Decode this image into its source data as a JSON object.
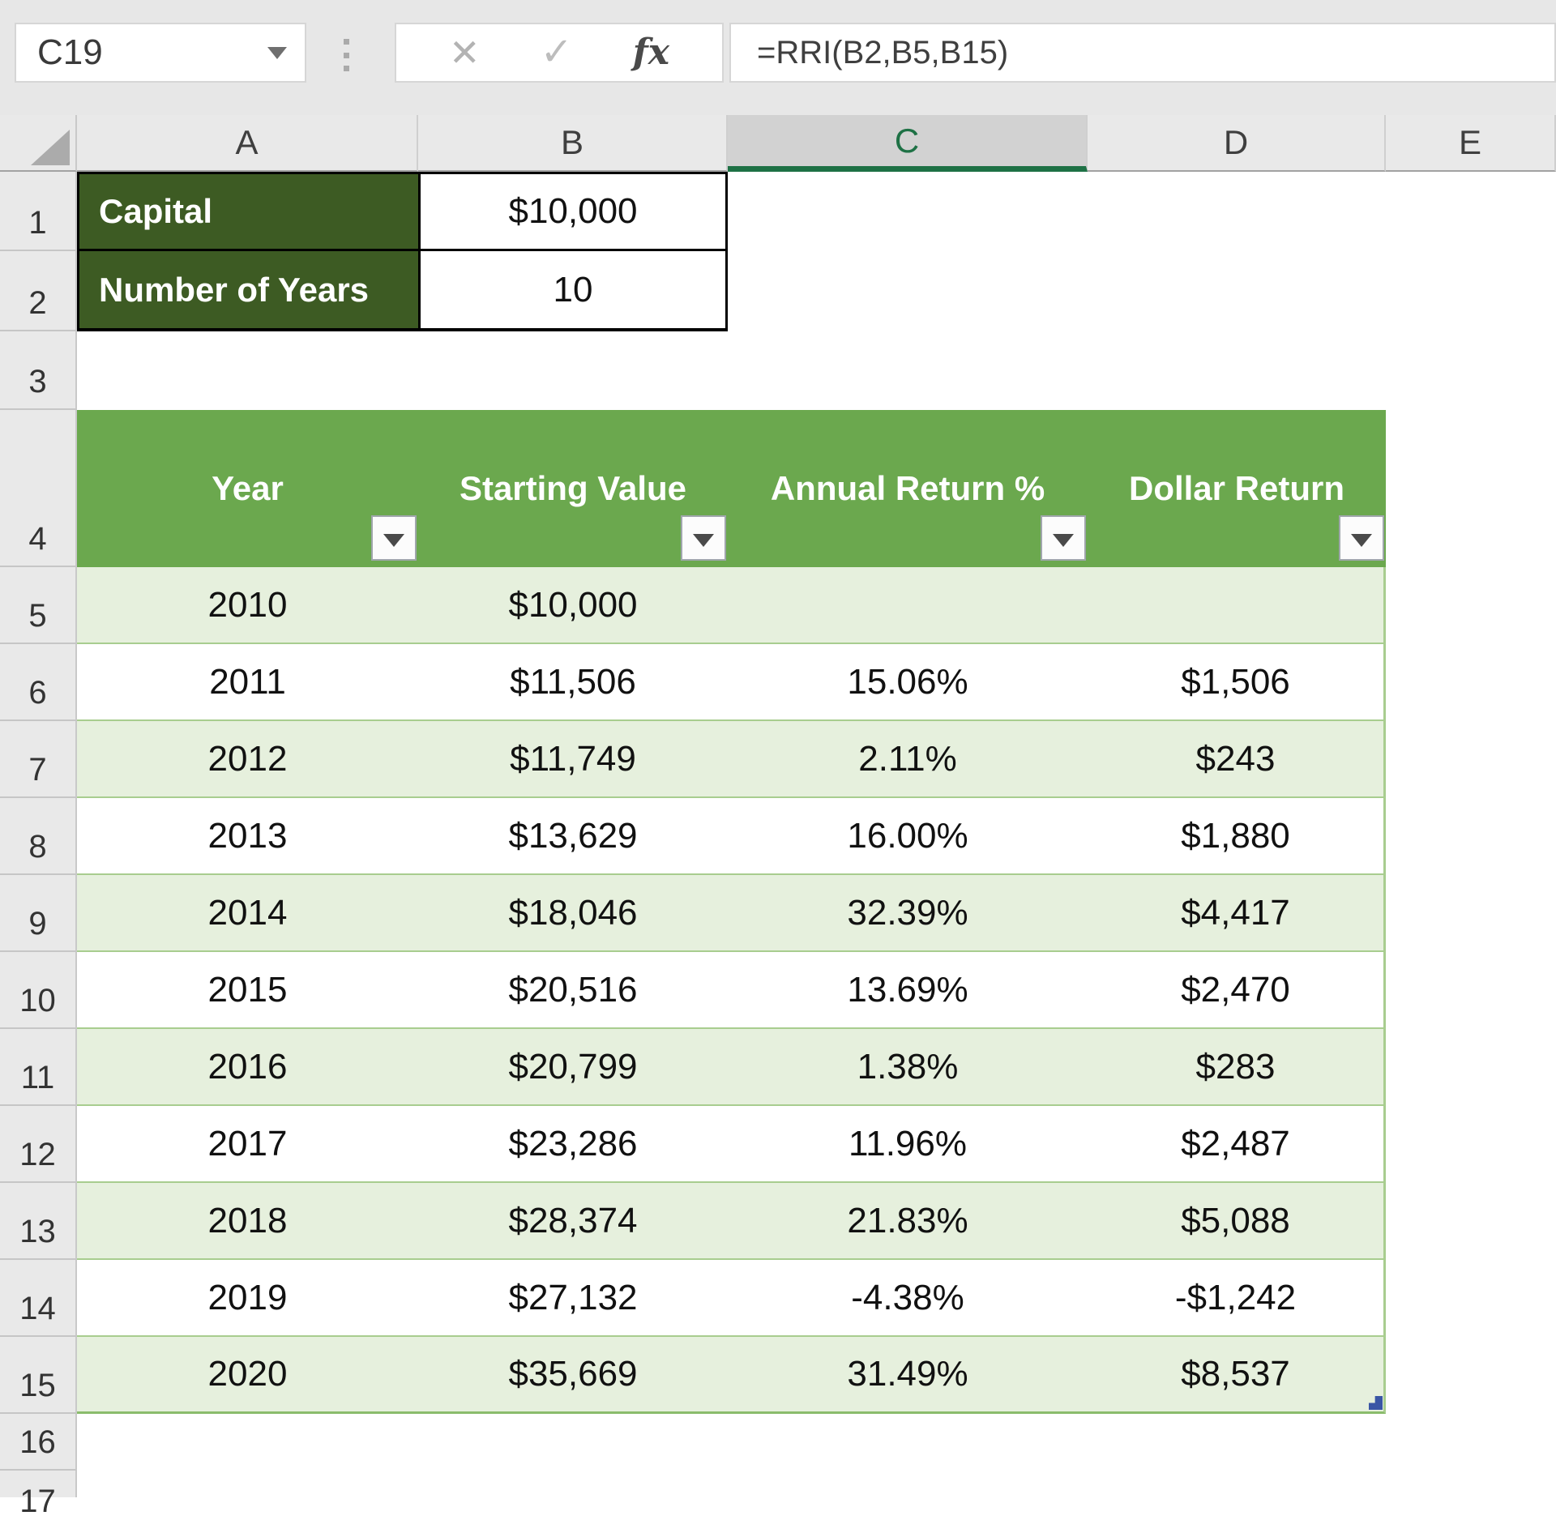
{
  "chrome": {
    "name_box": "C19",
    "formula": "=RRI(B2,B5,B15)",
    "cancel_glyph": "✕",
    "enter_glyph": "✓",
    "fx_label": "fx"
  },
  "grid": {
    "column_headers": [
      "A",
      "B",
      "C",
      "D",
      "E"
    ],
    "selected_column": "C",
    "row_numbers": [
      "1",
      "2",
      "3",
      "4",
      "5",
      "6",
      "7",
      "8",
      "9",
      "10",
      "11",
      "12",
      "13",
      "14",
      "15",
      "16",
      "17"
    ]
  },
  "inputs": {
    "rows": [
      {
        "label": "Capital",
        "value": "$10,000"
      },
      {
        "label": "Number of Years",
        "value": "10"
      }
    ]
  },
  "table": {
    "headers": {
      "year": "Year",
      "starting_value": "Starting Value",
      "annual_return": "Annual Return %",
      "dollar_return": "Dollar Return"
    },
    "rows": [
      {
        "row": "5",
        "year": "2010",
        "starting_value": "$10,000",
        "annual_return": "",
        "dollar_return": ""
      },
      {
        "row": "6",
        "year": "2011",
        "starting_value": "$11,506",
        "annual_return": "15.06%",
        "dollar_return": "$1,506"
      },
      {
        "row": "7",
        "year": "2012",
        "starting_value": "$11,749",
        "annual_return": "2.11%",
        "dollar_return": "$243"
      },
      {
        "row": "8",
        "year": "2013",
        "starting_value": "$13,629",
        "annual_return": "16.00%",
        "dollar_return": "$1,880"
      },
      {
        "row": "9",
        "year": "2014",
        "starting_value": "$18,046",
        "annual_return": "32.39%",
        "dollar_return": "$4,417"
      },
      {
        "row": "10",
        "year": "2015",
        "starting_value": "$20,516",
        "annual_return": "13.69%",
        "dollar_return": "$2,470"
      },
      {
        "row": "11",
        "year": "2016",
        "starting_value": "$20,799",
        "annual_return": "1.38%",
        "dollar_return": "$283"
      },
      {
        "row": "12",
        "year": "2017",
        "starting_value": "$23,286",
        "annual_return": "11.96%",
        "dollar_return": "$2,487"
      },
      {
        "row": "13",
        "year": "2018",
        "starting_value": "$28,374",
        "annual_return": "21.83%",
        "dollar_return": "$5,088"
      },
      {
        "row": "14",
        "year": "2019",
        "starting_value": "$27,132",
        "annual_return": "-4.38%",
        "dollar_return": "-$1,242"
      },
      {
        "row": "15",
        "year": "2020",
        "starting_value": "$35,669",
        "annual_return": "31.49%",
        "dollar_return": "$8,537"
      }
    ]
  },
  "colors": {
    "label_cell_green": "#3d5b23",
    "table_header_green": "#6ba84e",
    "band_green": "#e6f0dd",
    "selected_accent_green": "#1e7145",
    "resize_handle_blue": "#3a56a5"
  }
}
